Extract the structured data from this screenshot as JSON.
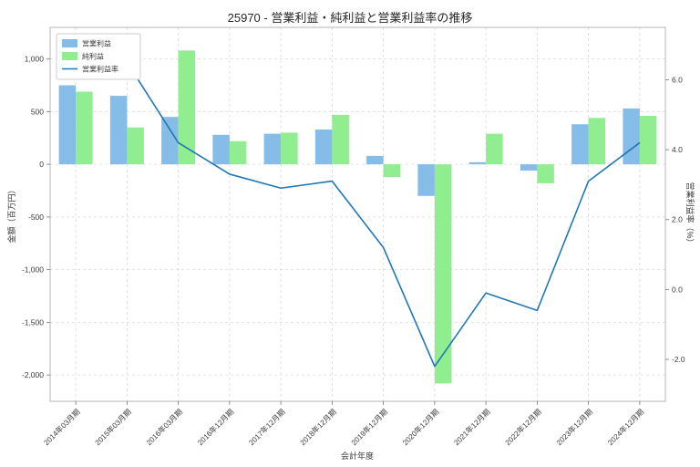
{
  "chart_data": {
    "type": "bar+line",
    "title": "25970 - 営業利益・純利益と営業利益率の推移",
    "categories": [
      "2014年03月期",
      "2015年03月期",
      "2016年03月期",
      "2016年12月期",
      "2017年12月期",
      "2018年12月期",
      "2019年12月期",
      "2020年12月期",
      "2021年12月期",
      "2022年12月期",
      "2023年12月期",
      "2024年12月期"
    ],
    "bar_series": [
      {
        "name": "営業利益",
        "color": "#85BCE8",
        "values": [
          750,
          650,
          450,
          280,
          290,
          330,
          80,
          -300,
          20,
          -60,
          380,
          530
        ]
      },
      {
        "name": "純利益",
        "color": "#90EE90",
        "values": [
          690,
          350,
          1080,
          220,
          300,
          470,
          -120,
          -2080,
          290,
          -180,
          440,
          460
        ]
      }
    ],
    "line_series": {
      "name": "営業利益率",
      "color": "#1f77b4",
      "axis": "right",
      "values": [
        6.4,
        6.5,
        4.2,
        3.3,
        2.9,
        3.1,
        1.2,
        -2.2,
        -0.1,
        -0.6,
        3.1,
        4.2
      ]
    },
    "left_axis": {
      "label": "金額（百万円）",
      "ticks": [
        1000,
        500,
        0,
        -500,
        -1000,
        -1500,
        -2000
      ],
      "lim": [
        -2250,
        1300
      ]
    },
    "right_axis": {
      "label": "営業利益率（%）",
      "ticks": [
        6,
        4,
        2,
        0,
        -2
      ],
      "lim": [
        -3.2,
        7.5
      ]
    },
    "x_axis": {
      "label": "会計年度"
    },
    "legend": {
      "position": "upper-left",
      "entries": [
        "営業利益",
        "純利益",
        "営業利益率"
      ]
    },
    "grid": {
      "style": "dashed",
      "color": "#d9d9d9"
    }
  }
}
